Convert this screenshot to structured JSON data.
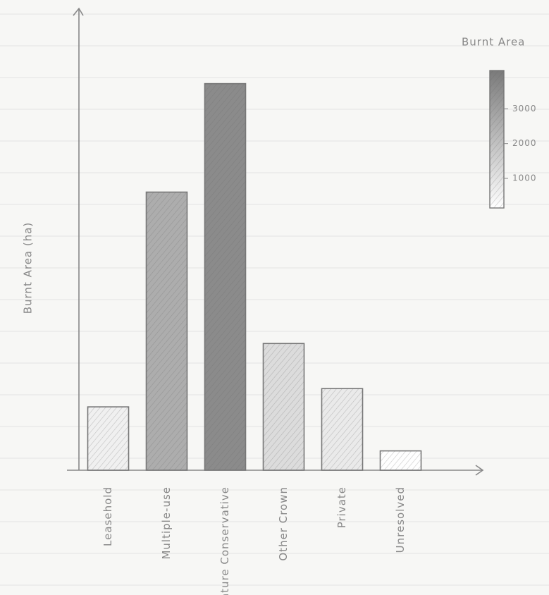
{
  "chart_data": {
    "type": "bar",
    "y_label": "Burnt Area (ha)",
    "categories": [
      "Leasehold",
      "Multiple-use",
      "Nature Conservative",
      "Other Crown",
      "Private",
      "Unresolved"
    ],
    "values": [
      590,
      2590,
      3600,
      1180,
      760,
      180
    ],
    "ylim": [
      0,
      4300
    ],
    "colorbar": {
      "label": "Burnt Area",
      "lim": [
        150,
        4100
      ],
      "ticks": [
        1000,
        2000,
        3000
      ],
      "colors": [
        "#ffffff",
        "#7a7a7a"
      ]
    }
  }
}
